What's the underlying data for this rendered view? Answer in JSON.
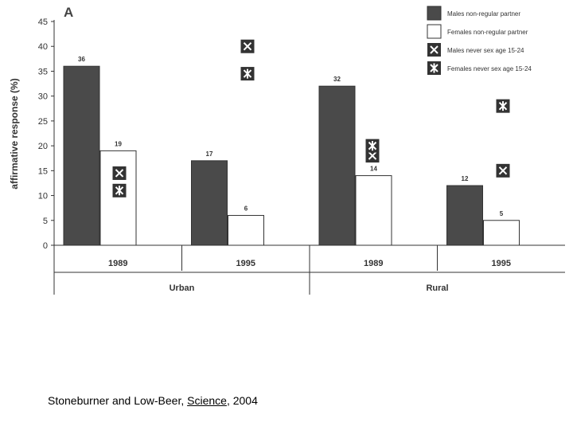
{
  "chart_data": {
    "type": "bar",
    "panel_label": "A",
    "ylabel": "affirmative response (%)",
    "ylim": [
      0,
      45
    ],
    "yticks": [
      0,
      5,
      10,
      15,
      20,
      25,
      30,
      35,
      40,
      45
    ],
    "groups": [
      {
        "name": "Urban",
        "categories": [
          "1989",
          "1995"
        ]
      },
      {
        "name": "Rural",
        "categories": [
          "1989",
          "1995"
        ]
      }
    ],
    "series": [
      {
        "name": "Males non-regular partner",
        "color": "#4a4a4a",
        "values": [
          36,
          17,
          32,
          12
        ],
        "labels": [
          "36",
          "17",
          "32",
          "12"
        ]
      },
      {
        "name": "Females non-regular partner",
        "color": "#ffffff",
        "values": [
          19,
          6,
          14,
          5
        ],
        "labels": [
          "19",
          "6",
          "14",
          "5"
        ]
      }
    ],
    "markers": [
      {
        "name": "Males never sex age 15-24",
        "symbol": "x-box",
        "values": [
          14.5,
          40,
          18,
          15
        ]
      },
      {
        "name": "Females never sex age 15-24",
        "symbol": "asterisk-box",
        "values": [
          11,
          34.5,
          20,
          28
        ]
      }
    ]
  },
  "citation": {
    "authors": "Stoneburner and Low-Beer, ",
    "journal": "Science",
    "year": ", 2004"
  }
}
